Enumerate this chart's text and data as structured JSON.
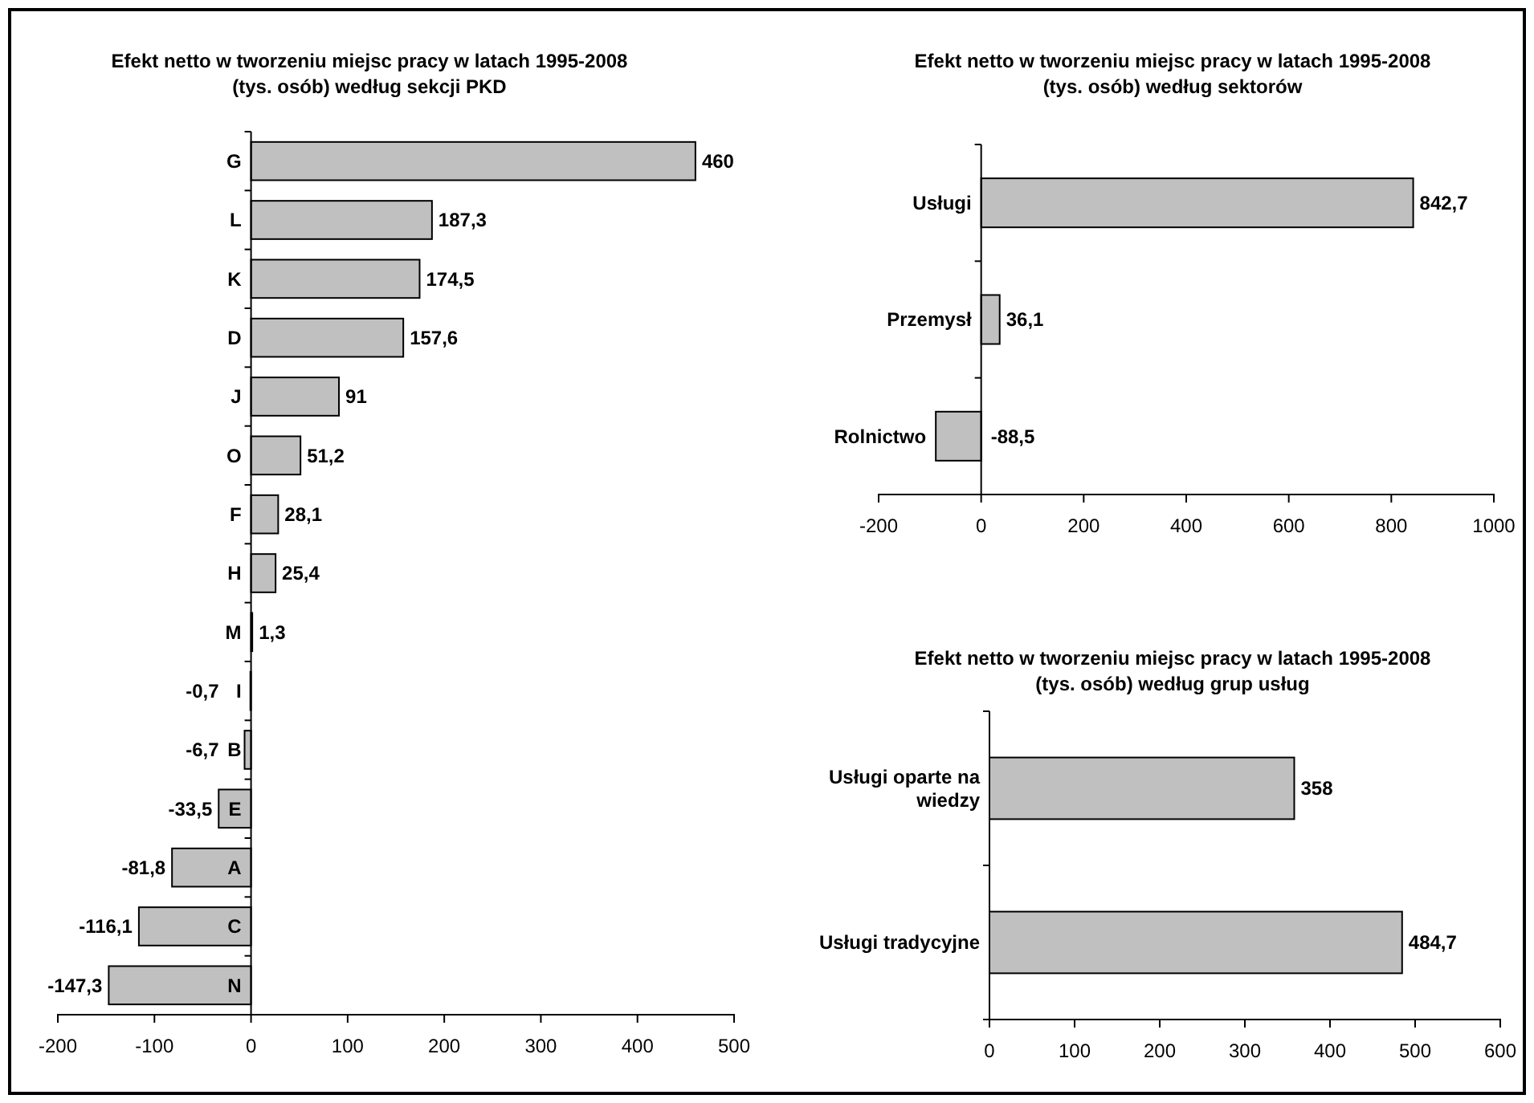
{
  "chart_data": [
    {
      "type": "bar",
      "orientation": "horizontal",
      "title": "Efekt netto w tworzeniu miejsc pracy w latach 1995-2008\n(tys. osób) według sekcji PKD",
      "categories": [
        "G",
        "L",
        "K",
        "D",
        "J",
        "O",
        "F",
        "H",
        "M",
        "I",
        "B",
        "E",
        "A",
        "C",
        "N"
      ],
      "values": [
        460,
        187.3,
        174.5,
        157.6,
        91,
        51.2,
        28.1,
        25.4,
        1.3,
        -0.7,
        -6.7,
        -33.5,
        -81.8,
        -116.1,
        -147.3
      ],
      "value_labels": [
        "460",
        "187,3",
        "174,5",
        "157,6",
        "91",
        "51,2",
        "28,1",
        "25,4",
        "1,3",
        "-0,7",
        "-6,7",
        "-33,5",
        "-81,8",
        "-116,1",
        "-147,3"
      ],
      "color": "#c0c0c0",
      "xlim": [
        -200,
        500
      ],
      "xticks": [
        -200,
        -100,
        0,
        100,
        200,
        300,
        400,
        500
      ]
    },
    {
      "type": "bar",
      "orientation": "horizontal",
      "title": "Efekt netto w tworzeniu miejsc pracy w latach 1995-2008\n(tys. osób) według sektorów",
      "categories": [
        "Usługi",
        "Przemysł",
        "Rolnictwo"
      ],
      "values": [
        842.7,
        36.1,
        -88.5
      ],
      "value_labels": [
        "842,7",
        "36,1",
        "-88,5"
      ],
      "color": "#c0c0c0",
      "xlim": [
        -200,
        1000
      ],
      "xticks": [
        -200,
        0,
        200,
        400,
        600,
        800,
        1000
      ]
    },
    {
      "type": "bar",
      "orientation": "horizontal",
      "title": "Efekt netto w tworzeniu miejsc pracy w latach 1995-2008\n(tys. osób) według grup usług",
      "categories": [
        "Usługi oparte na wiedzy",
        "Usługi tradycyjne"
      ],
      "values": [
        358,
        484.7
      ],
      "value_labels": [
        "358",
        "484,7"
      ],
      "color": "#c0c0c0",
      "xlim": [
        0,
        600
      ],
      "xticks": [
        0,
        100,
        200,
        300,
        400,
        500,
        600
      ]
    }
  ]
}
